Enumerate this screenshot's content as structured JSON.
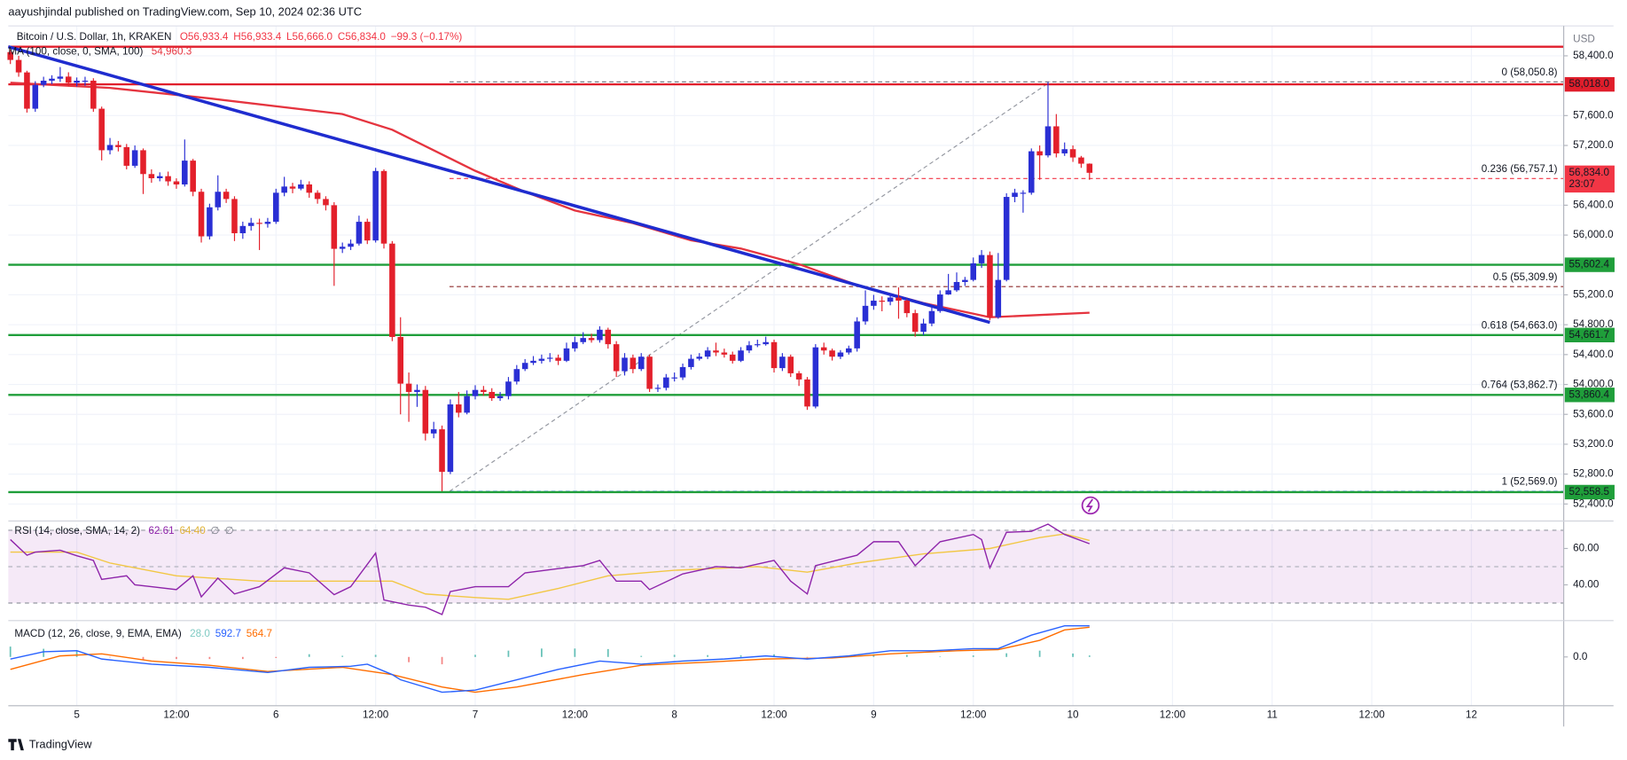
{
  "header": {
    "publisher": "aayushjindal published on TradingView.com, Sep 10, 2024 02:36 UTC",
    "brand": "TradingView"
  },
  "chart_data": [
    {
      "type": "candlestick",
      "title": "Bitcoin / U.S. Dollar, 1h, KRAKEN",
      "ohlc_readout": [
        "O56,933.4",
        "H56,933.4",
        "L56,666.0",
        "C56,834.0",
        "−99.3 (−0.17%)"
      ],
      "currency": "USD",
      "up_color": "#2a2fd4",
      "down_color": "#e3202b",
      "grid": true,
      "xlim": [
        -0.25,
        187.125
      ],
      "xticks": [
        {
          "value": 8,
          "label": "5"
        },
        {
          "value": 20,
          "label": "12:00"
        },
        {
          "value": 32,
          "label": "6"
        },
        {
          "value": 44,
          "label": "12:00"
        },
        {
          "value": 56,
          "label": "7"
        },
        {
          "value": 68,
          "label": "12:00"
        },
        {
          "value": 80,
          "label": "8"
        },
        {
          "value": 92,
          "label": "12:00"
        },
        {
          "value": 104,
          "label": "9"
        },
        {
          "value": 116,
          "label": "12:00"
        },
        {
          "value": 128,
          "label": "10"
        },
        {
          "value": 140,
          "label": "12:00"
        },
        {
          "value": 152,
          "label": "11"
        },
        {
          "value": 164,
          "label": "12:00"
        },
        {
          "value": 176,
          "label": "12"
        }
      ],
      "ylim": [
        52200,
        58800
      ],
      "yticks": [
        {
          "value": 58400,
          "label": "58,400.0"
        },
        {
          "value": 57600,
          "label": "57,600.0"
        },
        {
          "value": 57200,
          "label": "57,200.0"
        },
        {
          "value": 56400,
          "label": "56,400.0"
        },
        {
          "value": 56000,
          "label": "56,000.0"
        },
        {
          "value": 55200,
          "label": "55,200.0"
        },
        {
          "value": 54800,
          "label": "54,800.0"
        },
        {
          "value": 54400,
          "label": "54,400.0"
        },
        {
          "value": 54000,
          "label": "54,000.0"
        },
        {
          "value": 53600,
          "label": "53,600.0"
        },
        {
          "value": 53200,
          "label": "53,200.0"
        },
        {
          "value": 52800,
          "label": "52,800.0"
        },
        {
          "value": 52400,
          "label": "52,400.0"
        }
      ],
      "open": 58450,
      "close": [
        58345,
        58178,
        57692,
        58011,
        58067,
        58094,
        58122,
        58039,
        58067,
        58067,
        57692,
        57136,
        57206,
        57178,
        56928,
        57136,
        56817,
        56761,
        56789,
        56719,
        56678,
        56997,
        56580,
        55983,
        56372,
        56580,
        56483,
        56025,
        56122,
        56164,
        56150,
        56178,
        56567,
        56650,
        56622,
        56678,
        56567,
        56483,
        56400,
        55816,
        55844,
        55886,
        56178,
        55928,
        56858,
        55886,
        54636,
        54011,
        53900,
        53927,
        53344,
        53400,
        52830,
        53733,
        53622,
        53844,
        53927,
        53900,
        53816,
        53844,
        54039,
        54206,
        54289,
        54317,
        54344,
        54358,
        54317,
        54483,
        54567,
        54622,
        54594,
        54733,
        54539,
        54178,
        54358,
        54206,
        54372,
        53941,
        53955,
        54094,
        54094,
        54233,
        54344,
        54372,
        54455,
        54428,
        54400,
        54317,
        54455,
        54525,
        54539,
        54567,
        54219,
        54372,
        54150,
        54067,
        53705,
        54497,
        54455,
        54372,
        54428,
        54483,
        54844,
        55053,
        55122,
        55108,
        55164,
        55122,
        54955,
        54705,
        54816,
        54983,
        55205,
        55261,
        55372,
        55400,
        55622,
        55733,
        54900,
        55400,
        56511,
        56567,
        56567,
        57122,
        57067,
        57456,
        57094,
        57150,
        57039,
        56956,
        56834
      ],
      "high": [
        58480,
        58400,
        58200,
        58060,
        58120,
        58140,
        58250,
        58180,
        58110,
        58120,
        58100,
        57720,
        57300,
        57260,
        57220,
        57200,
        57160,
        56880,
        56840,
        56850,
        56760,
        57280,
        57020,
        56620,
        56420,
        56800,
        56620,
        56520,
        56180,
        56230,
        56220,
        56230,
        56620,
        56780,
        56700,
        56740,
        56720,
        56600,
        56520,
        56440,
        55900,
        55940,
        56260,
        56220,
        56900,
        56880,
        55920,
        54900,
        54160,
        54000,
        53980,
        53500,
        53450,
        53800,
        53900,
        53920,
        53990,
        53980,
        53950,
        53900,
        54100,
        54260,
        54340,
        54380,
        54400,
        54420,
        54400,
        54560,
        54640,
        54700,
        54680,
        54780,
        54760,
        54580,
        54420,
        54400,
        54420,
        54400,
        54000,
        54140,
        54160,
        54280,
        54400,
        54420,
        54500,
        54560,
        54480,
        54440,
        54500,
        54580,
        54600,
        54640,
        54600,
        54420,
        54400,
        54180,
        54100,
        54540,
        54560,
        54480,
        54460,
        54520,
        54900,
        55260,
        55200,
        55180,
        55220,
        55300,
        55140,
        55000,
        54880,
        55040,
        55260,
        55480,
        55500,
        55440,
        55700,
        55800,
        55780,
        55760,
        56560,
        56620,
        56600,
        57160,
        57200,
        58050,
        57620,
        57240,
        57200,
        57060,
        56960
      ],
      "low": [
        58290,
        58120,
        57640,
        57650,
        57980,
        58020,
        58050,
        57990,
        57990,
        58000,
        57650,
        57000,
        57080,
        57120,
        56880,
        56900,
        56550,
        56700,
        56720,
        56660,
        56620,
        56650,
        56520,
        55900,
        55940,
        56330,
        56430,
        55920,
        55950,
        56060,
        55800,
        56100,
        56150,
        56520,
        56560,
        56600,
        56500,
        56420,
        56330,
        55320,
        55760,
        55800,
        55860,
        55880,
        55900,
        55820,
        54580,
        53600,
        53500,
        53700,
        53250,
        53280,
        52569,
        52800,
        53560,
        53600,
        53800,
        53850,
        53780,
        53780,
        53800,
        54000,
        54180,
        54260,
        54280,
        54300,
        54260,
        54300,
        54440,
        54540,
        54560,
        54560,
        54480,
        54100,
        54120,
        54150,
        54180,
        53900,
        53900,
        53920,
        54040,
        54060,
        54200,
        54320,
        54340,
        54380,
        54360,
        54280,
        54300,
        54420,
        54500,
        54520,
        54160,
        54180,
        54100,
        53980,
        53660,
        53680,
        54400,
        54320,
        54340,
        54400,
        54440,
        54800,
        55000,
        54980,
        55060,
        54880,
        54900,
        54640,
        54660,
        54780,
        54960,
        55200,
        55240,
        55320,
        55380,
        55560,
        54860,
        54880,
        55380,
        56440,
        56300,
        56540,
        56740,
        57040,
        57040,
        57060,
        56980,
        56900,
        56740
      ],
      "series": [
        {
          "name": "MA (100, close, 0, SMA, 100)",
          "readout": "54,960.3",
          "color": "#e5343f",
          "x": [
            0,
            12,
            24,
            40,
            46,
            56,
            62,
            68,
            75,
            82,
            88,
            95,
            102,
            110,
            118,
            124,
            130
          ],
          "values": [
            58040,
            57970,
            57830,
            57620,
            57410,
            56860,
            56580,
            56330,
            56160,
            55930,
            55820,
            55610,
            55330,
            55090,
            54900,
            54930,
            54960.3
          ]
        }
      ],
      "trendline": {
        "color": "#1f2ccf",
        "x": [
          -0.25,
          118
        ],
        "values": [
          58522,
          54830
        ]
      },
      "levels": [
        {
          "value": 58522,
          "color": "#e01e2b"
        },
        {
          "value": 58018,
          "label": "58,018.0",
          "color": "#e01e2b"
        },
        {
          "value": 55602.4,
          "label": "55,602.4",
          "color": "#1f9e3a"
        },
        {
          "value": 54661.7,
          "label": "54,661.7",
          "color": "#1f9e3a"
        },
        {
          "value": 53860.4,
          "label": "53,860.4",
          "color": "#1f9e3a"
        },
        {
          "value": 52558.5,
          "label": "52,558.5",
          "color": "#1f9e3a"
        }
      ],
      "last_price": {
        "value": 56834,
        "label": "56,834.0",
        "countdown": "23:07",
        "color": "#f23645"
      },
      "fib_x": [
        52.9,
        125.25
      ],
      "fib_levels": [
        {
          "value": 58050.8,
          "label": "0 (58,050.8)",
          "color": "#787b86"
        },
        {
          "value": 56757.1,
          "label": "0.236 (56,757.1)",
          "color": "#f23645"
        },
        {
          "value": 55309.9,
          "label": "0.5 (55,309.9)",
          "color": "#8d2a2a"
        },
        {
          "value": 54663.0,
          "label": "0.618 (54,663.0)",
          "color": "#089981"
        },
        {
          "value": 53862.7,
          "label": "0.764 (53,862.7)",
          "color": "#c62828"
        },
        {
          "value": 52569.0,
          "label": "1 (52,569.0)",
          "color": "#2962ff"
        }
      ]
    },
    {
      "type": "line",
      "title": "RSI (14, close, SMA, 14, 2)",
      "flags": [
        "∅",
        "∅"
      ],
      "ylim": [
        20.9,
        73.4
      ],
      "yticks": [
        {
          "value": 60,
          "label": "60.00"
        },
        {
          "value": 40,
          "label": "40.00"
        }
      ],
      "band": [
        30,
        70
      ],
      "midline": 50,
      "band_color": "#9c27b0",
      "series": [
        {
          "readout": "62.61",
          "color": "#8e24aa",
          "x": [
            0,
            2,
            3,
            6,
            8,
            10,
            11,
            14,
            15,
            17,
            20,
            22,
            23,
            25,
            27,
            30,
            33,
            36,
            39,
            41,
            44,
            45,
            48,
            50,
            52,
            53,
            56,
            60,
            62,
            66,
            69,
            71,
            73,
            76,
            77,
            81,
            85,
            88,
            92,
            94,
            96,
            97,
            102,
            104,
            107,
            109,
            112,
            116,
            117,
            118,
            120,
            123,
            125,
            127,
            130
          ],
          "values": [
            64.9,
            56.3,
            58,
            59,
            56,
            53.4,
            43,
            45,
            40,
            39,
            37.4,
            45,
            33.4,
            43.7,
            35,
            39,
            49.4,
            46.6,
            34.6,
            39,
            57.4,
            31.7,
            28.9,
            27.7,
            23.7,
            36.3,
            39,
            39,
            46.6,
            48.9,
            50.6,
            53.4,
            42,
            42,
            37.4,
            46,
            50,
            49.4,
            53.4,
            42,
            35,
            50.6,
            56.3,
            63.7,
            63.7,
            50.6,
            63.7,
            67.7,
            64.9,
            49.4,
            68.9,
            69.4,
            73.4,
            67.7,
            62.61
          ]
        },
        {
          "readout": "64.40",
          "color": "#f2c744",
          "x": [
            0,
            8,
            12,
            20,
            30,
            40,
            46,
            50,
            56,
            60,
            66,
            72,
            80,
            90,
            96,
            102,
            110,
            118,
            124,
            127,
            130
          ],
          "values": [
            58,
            58,
            52,
            45,
            42,
            42,
            42,
            35,
            33,
            32,
            38,
            45,
            48,
            50,
            47,
            52,
            57,
            60,
            66,
            68,
            64.4
          ]
        }
      ]
    },
    {
      "type": "macd",
      "title": "MACD (12, 26, close, 9, EMA, EMA)",
      "ylim": [
        -929,
        652
      ],
      "yticks": [
        {
          "value": 0,
          "label": "0.0"
        }
      ],
      "histogram": {
        "readout": "28.0",
        "up_color": "#26a69a",
        "down_color": "#ef5350",
        "x": [
          0,
          4,
          8,
          12,
          16,
          20,
          24,
          28,
          32,
          36,
          40,
          44,
          48,
          52,
          56,
          60,
          64,
          68,
          72,
          76,
          80,
          84,
          88,
          92,
          96,
          100,
          104,
          108,
          112,
          116,
          120,
          124,
          128,
          130
        ],
        "values": [
          197,
          155,
          109,
          -10,
          -50,
          -40,
          -40,
          -40,
          -20,
          52,
          22,
          40,
          -100,
          -140,
          40,
          120,
          160,
          160,
          150,
          20,
          40,
          35,
          30,
          50,
          -10,
          20,
          50,
          39,
          6,
          28,
          70,
          120,
          65,
          28.0
        ]
      },
      "series": [
        {
          "readout": "592.7",
          "color": "#2962ff",
          "x": [
            0,
            4,
            8,
            11,
            17,
            24,
            31,
            36,
            41,
            43,
            46,
            47,
            52,
            56,
            61,
            66,
            71,
            76,
            81,
            86,
            91,
            96,
            101,
            106,
            111,
            116,
            119,
            123,
            127,
            130
          ],
          "values": [
            -40,
            99,
            119,
            -40,
            -138,
            -198,
            -296,
            -198,
            -178,
            -138,
            -336,
            -435,
            -672,
            -632,
            -435,
            -237,
            -79,
            -138,
            -79,
            -40,
            20,
            -40,
            20,
            119,
            119,
            158,
            158,
            415,
            593,
            592.7
          ]
        },
        {
          "readout": "564.7",
          "color": "#ff6d00",
          "x": [
            0,
            6,
            11,
            17,
            24,
            31,
            40,
            46,
            52,
            56,
            61,
            69,
            76,
            84,
            91,
            99,
            106,
            114,
            119,
            124,
            127,
            130
          ],
          "values": [
            -237,
            20,
            59,
            -79,
            -158,
            -277,
            -198,
            -336,
            -573,
            -672,
            -573,
            -336,
            -158,
            -99,
            -40,
            -20,
            59,
            119,
            138,
            316,
            514,
            564.7
          ]
        }
      ]
    }
  ]
}
